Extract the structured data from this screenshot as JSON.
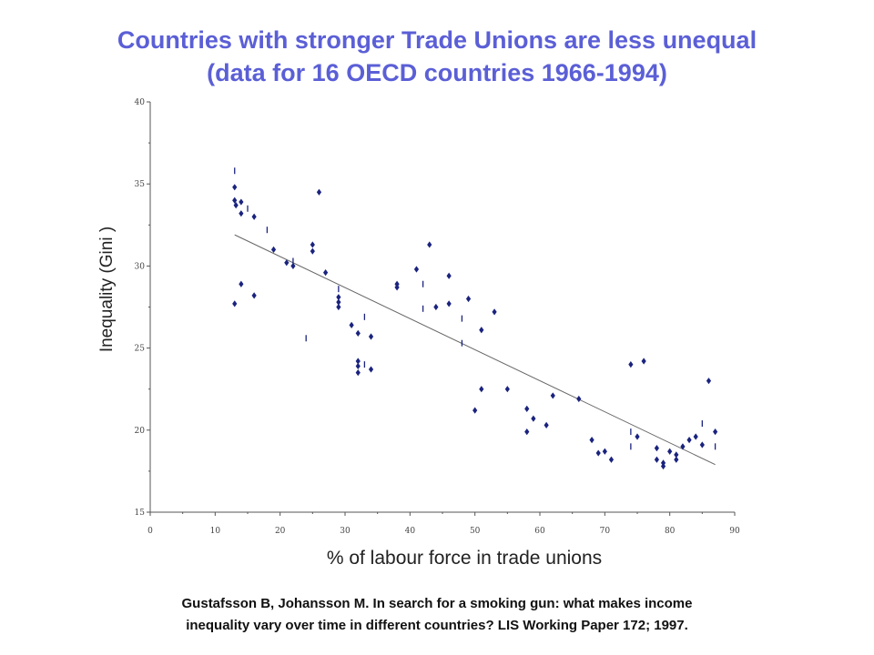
{
  "title_line1": "Countries with stronger Trade Unions are less unequal",
  "title_line2": "(data for 16 OECD countries 1966-1994)",
  "citation_line1": "Gustafsson B, Johansson M.  In search for a smoking gun: what makes income",
  "citation_line2": "inequality vary over time in different countries? LIS Working Paper 172; 1997.",
  "colors": {
    "title": "#5b5fd6",
    "points": "#1a237e",
    "axis": "#555555",
    "trend": "#666666"
  },
  "chart_data": {
    "type": "scatter",
    "title": "",
    "xlabel": "% of labour force in trade unions",
    "ylabel": "Inequality (Gini )",
    "xlim": [
      0,
      90
    ],
    "ylim": [
      15,
      40
    ],
    "xticks": [
      0,
      10,
      20,
      30,
      40,
      50,
      60,
      70,
      80,
      90
    ],
    "yticks": [
      15,
      20,
      25,
      30,
      35,
      40
    ],
    "grid": false,
    "series": [
      {
        "marker": "diamond",
        "points": [
          [
            13,
            34.8
          ],
          [
            13,
            34.0
          ],
          [
            13.2,
            33.7
          ],
          [
            14,
            33.9
          ],
          [
            14,
            33.2
          ],
          [
            16,
            33.0
          ],
          [
            13,
            27.7
          ],
          [
            14,
            28.9
          ],
          [
            16,
            28.2
          ],
          [
            19,
            31.0
          ],
          [
            21,
            30.2
          ],
          [
            22,
            30.0
          ],
          [
            25,
            31.3
          ],
          [
            25,
            30.9
          ],
          [
            26,
            34.5
          ],
          [
            27,
            29.6
          ],
          [
            29,
            28.1
          ],
          [
            29,
            27.8
          ],
          [
            29,
            27.5
          ],
          [
            31,
            26.4
          ],
          [
            32,
            25.9
          ],
          [
            32,
            24.2
          ],
          [
            32,
            23.9
          ],
          [
            32,
            23.5
          ],
          [
            34,
            25.7
          ],
          [
            34,
            23.7
          ],
          [
            38,
            28.9
          ],
          [
            38,
            28.7
          ],
          [
            41,
            29.8
          ],
          [
            43,
            31.3
          ],
          [
            44,
            27.5
          ],
          [
            46,
            29.4
          ],
          [
            46,
            27.7
          ],
          [
            49,
            28.0
          ],
          [
            50,
            21.2
          ],
          [
            51,
            26.1
          ],
          [
            51,
            22.5
          ],
          [
            53,
            27.2
          ],
          [
            55,
            22.5
          ],
          [
            58,
            21.3
          ],
          [
            58,
            19.9
          ],
          [
            59,
            20.7
          ],
          [
            61,
            20.3
          ],
          [
            62,
            22.1
          ],
          [
            66,
            21.9
          ],
          [
            68,
            19.4
          ],
          [
            69,
            18.6
          ],
          [
            70,
            18.7
          ],
          [
            71,
            18.2
          ],
          [
            74,
            24.0
          ],
          [
            75,
            19.6
          ],
          [
            76,
            24.2
          ],
          [
            78,
            18.9
          ],
          [
            78,
            18.2
          ],
          [
            79,
            18.0
          ],
          [
            79,
            17.8
          ],
          [
            80,
            18.7
          ],
          [
            81,
            18.5
          ],
          [
            81,
            18.2
          ],
          [
            82,
            19.0
          ],
          [
            83,
            19.4
          ],
          [
            84,
            19.6
          ],
          [
            85,
            19.1
          ],
          [
            86,
            23.0
          ],
          [
            87,
            19.9
          ]
        ]
      },
      {
        "marker": "tick",
        "points": [
          [
            13,
            35.8
          ],
          [
            15,
            33.5
          ],
          [
            18,
            32.2
          ],
          [
            22,
            30.3
          ],
          [
            24,
            25.6
          ],
          [
            29,
            28.6
          ],
          [
            33,
            26.9
          ],
          [
            33,
            24.0
          ],
          [
            42,
            28.9
          ],
          [
            42,
            27.4
          ],
          [
            48,
            26.8
          ],
          [
            48,
            25.3
          ],
          [
            74,
            19.9
          ],
          [
            74,
            19.0
          ],
          [
            85,
            20.4
          ],
          [
            87,
            19.0
          ]
        ]
      }
    ],
    "trendline": {
      "x": [
        13,
        87
      ],
      "y": [
        31.9,
        17.9
      ]
    }
  }
}
